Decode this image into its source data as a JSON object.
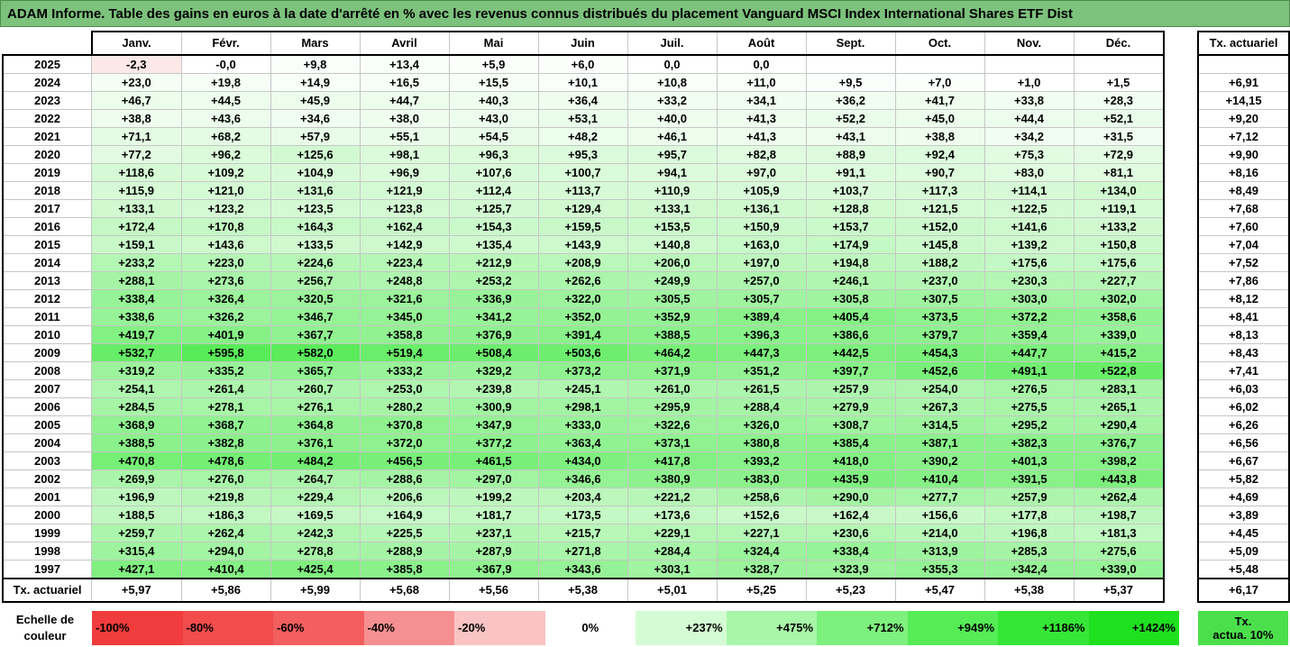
{
  "title": "ADAM Informe. Table des gains en euros à la date d'arrêté en % avec les revenus connus distribués du placement Vanguard MSCI Index International Shares ETF Dist",
  "months": [
    "Janv.",
    "Févr.",
    "Mars",
    "Avril",
    "Mai",
    "Juin",
    "Juil.",
    "Août",
    "Sept.",
    "Oct.",
    "Nov.",
    "Déc."
  ],
  "tx_header": "Tx. actuariel",
  "rows": [
    {
      "year": "2025",
      "vals": [
        "-2,3",
        "-0,0",
        "+9,8",
        "+13,4",
        "+5,9",
        "+6,0",
        "0,0",
        "0,0",
        "",
        "",
        "",
        ""
      ],
      "tx": ""
    },
    {
      "year": "2024",
      "vals": [
        "+23,0",
        "+19,8",
        "+14,9",
        "+16,5",
        "+15,5",
        "+10,1",
        "+10,8",
        "+11,0",
        "+9,5",
        "+7,0",
        "+1,0",
        "+1,5"
      ],
      "tx": "+6,91"
    },
    {
      "year": "2023",
      "vals": [
        "+46,7",
        "+44,5",
        "+45,9",
        "+44,7",
        "+40,3",
        "+36,4",
        "+33,2",
        "+34,1",
        "+36,2",
        "+41,7",
        "+33,8",
        "+28,3"
      ],
      "tx": "+14,15"
    },
    {
      "year": "2022",
      "vals": [
        "+38,8",
        "+43,6",
        "+34,6",
        "+38,0",
        "+43,0",
        "+53,1",
        "+40,0",
        "+41,3",
        "+52,2",
        "+45,0",
        "+44,4",
        "+52,1"
      ],
      "tx": "+9,20"
    },
    {
      "year": "2021",
      "vals": [
        "+71,1",
        "+68,2",
        "+57,9",
        "+55,1",
        "+54,5",
        "+48,2",
        "+46,1",
        "+41,3",
        "+43,1",
        "+38,8",
        "+34,2",
        "+31,5"
      ],
      "tx": "+7,12"
    },
    {
      "year": "2020",
      "vals": [
        "+77,2",
        "+96,2",
        "+125,6",
        "+98,1",
        "+96,3",
        "+95,3",
        "+95,7",
        "+82,8",
        "+88,9",
        "+92,4",
        "+75,3",
        "+72,9"
      ],
      "tx": "+9,90"
    },
    {
      "year": "2019",
      "vals": [
        "+118,6",
        "+109,2",
        "+104,9",
        "+96,9",
        "+107,6",
        "+100,7",
        "+94,1",
        "+97,0",
        "+91,1",
        "+90,7",
        "+83,0",
        "+81,1"
      ],
      "tx": "+8,16"
    },
    {
      "year": "2018",
      "vals": [
        "+115,9",
        "+121,0",
        "+131,6",
        "+121,9",
        "+112,4",
        "+113,7",
        "+110,9",
        "+105,9",
        "+103,7",
        "+117,3",
        "+114,1",
        "+134,0"
      ],
      "tx": "+8,49"
    },
    {
      "year": "2017",
      "vals": [
        "+133,1",
        "+123,2",
        "+123,5",
        "+123,8",
        "+125,7",
        "+129,4",
        "+133,1",
        "+136,1",
        "+128,8",
        "+121,5",
        "+122,5",
        "+119,1"
      ],
      "tx": "+7,68"
    },
    {
      "year": "2016",
      "vals": [
        "+172,4",
        "+170,8",
        "+164,3",
        "+162,4",
        "+154,3",
        "+159,5",
        "+153,5",
        "+150,9",
        "+153,7",
        "+152,0",
        "+141,6",
        "+133,2"
      ],
      "tx": "+7,60"
    },
    {
      "year": "2015",
      "vals": [
        "+159,1",
        "+143,6",
        "+133,5",
        "+142,9",
        "+135,4",
        "+143,9",
        "+140,8",
        "+163,0",
        "+174,9",
        "+145,8",
        "+139,2",
        "+150,8"
      ],
      "tx": "+7,04"
    },
    {
      "year": "2014",
      "vals": [
        "+233,2",
        "+223,0",
        "+224,6",
        "+223,4",
        "+212,9",
        "+208,9",
        "+206,0",
        "+197,0",
        "+194,8",
        "+188,2",
        "+175,6",
        "+175,6"
      ],
      "tx": "+7,52"
    },
    {
      "year": "2013",
      "vals": [
        "+288,1",
        "+273,6",
        "+256,7",
        "+248,8",
        "+253,2",
        "+262,6",
        "+249,9",
        "+257,0",
        "+246,1",
        "+237,0",
        "+230,3",
        "+227,7"
      ],
      "tx": "+7,86"
    },
    {
      "year": "2012",
      "vals": [
        "+338,4",
        "+326,4",
        "+320,5",
        "+321,6",
        "+336,9",
        "+322,0",
        "+305,5",
        "+305,7",
        "+305,8",
        "+307,5",
        "+303,0",
        "+302,0"
      ],
      "tx": "+8,12"
    },
    {
      "year": "2011",
      "vals": [
        "+338,6",
        "+326,2",
        "+346,7",
        "+345,0",
        "+341,2",
        "+352,0",
        "+352,9",
        "+389,4",
        "+405,4",
        "+373,5",
        "+372,2",
        "+358,6"
      ],
      "tx": "+8,41"
    },
    {
      "year": "2010",
      "vals": [
        "+419,7",
        "+401,9",
        "+367,7",
        "+358,8",
        "+376,9",
        "+391,4",
        "+388,5",
        "+396,3",
        "+386,6",
        "+379,7",
        "+359,4",
        "+339,0"
      ],
      "tx": "+8,13"
    },
    {
      "year": "2009",
      "vals": [
        "+532,7",
        "+595,8",
        "+582,0",
        "+519,4",
        "+508,4",
        "+503,6",
        "+464,2",
        "+447,3",
        "+442,5",
        "+454,3",
        "+447,7",
        "+415,2"
      ],
      "tx": "+8,43"
    },
    {
      "year": "2008",
      "vals": [
        "+319,2",
        "+335,2",
        "+365,7",
        "+333,2",
        "+329,2",
        "+373,2",
        "+371,9",
        "+351,2",
        "+397,7",
        "+452,6",
        "+491,1",
        "+522,8"
      ],
      "tx": "+7,41"
    },
    {
      "year": "2007",
      "vals": [
        "+254,1",
        "+261,4",
        "+260,7",
        "+253,0",
        "+239,8",
        "+245,1",
        "+261,0",
        "+261,5",
        "+257,9",
        "+254,0",
        "+276,5",
        "+283,1"
      ],
      "tx": "+6,03"
    },
    {
      "year": "2006",
      "vals": [
        "+284,5",
        "+278,1",
        "+276,1",
        "+280,2",
        "+300,9",
        "+298,1",
        "+295,9",
        "+288,4",
        "+279,9",
        "+267,3",
        "+275,5",
        "+265,1"
      ],
      "tx": "+6,02"
    },
    {
      "year": "2005",
      "vals": [
        "+368,9",
        "+368,7",
        "+364,8",
        "+370,8",
        "+347,9",
        "+333,0",
        "+322,6",
        "+326,0",
        "+308,7",
        "+314,5",
        "+295,2",
        "+290,4"
      ],
      "tx": "+6,26"
    },
    {
      "year": "2004",
      "vals": [
        "+388,5",
        "+382,8",
        "+376,1",
        "+372,0",
        "+377,2",
        "+363,4",
        "+373,1",
        "+380,8",
        "+385,4",
        "+387,1",
        "+382,3",
        "+376,7"
      ],
      "tx": "+6,56"
    },
    {
      "year": "2003",
      "vals": [
        "+470,8",
        "+478,6",
        "+484,2",
        "+456,5",
        "+461,5",
        "+434,0",
        "+417,8",
        "+393,2",
        "+418,0",
        "+390,2",
        "+401,3",
        "+398,2"
      ],
      "tx": "+6,67"
    },
    {
      "year": "2002",
      "vals": [
        "+269,9",
        "+276,0",
        "+264,7",
        "+288,6",
        "+297,0",
        "+346,6",
        "+380,9",
        "+383,0",
        "+435,9",
        "+410,4",
        "+391,5",
        "+443,8"
      ],
      "tx": "+5,82"
    },
    {
      "year": "2001",
      "vals": [
        "+196,9",
        "+219,8",
        "+229,4",
        "+206,6",
        "+199,2",
        "+203,4",
        "+221,2",
        "+258,6",
        "+290,0",
        "+277,7",
        "+257,9",
        "+262,4"
      ],
      "tx": "+4,69"
    },
    {
      "year": "2000",
      "vals": [
        "+188,5",
        "+186,3",
        "+169,5",
        "+164,9",
        "+181,7",
        "+173,5",
        "+173,6",
        "+152,6",
        "+162,4",
        "+156,6",
        "+177,8",
        "+198,7"
      ],
      "tx": "+3,89"
    },
    {
      "year": "1999",
      "vals": [
        "+259,7",
        "+262,4",
        "+242,3",
        "+225,5",
        "+237,1",
        "+215,7",
        "+229,1",
        "+227,1",
        "+230,6",
        "+214,0",
        "+196,8",
        "+181,3"
      ],
      "tx": "+4,45"
    },
    {
      "year": "1998",
      "vals": [
        "+315,4",
        "+294,0",
        "+278,8",
        "+288,9",
        "+287,9",
        "+271,8",
        "+284,4",
        "+324,4",
        "+338,4",
        "+313,9",
        "+285,3",
        "+275,6"
      ],
      "tx": "+5,09"
    },
    {
      "year": "1997",
      "vals": [
        "+427,1",
        "+410,4",
        "+425,4",
        "+385,8",
        "+367,9",
        "+343,6",
        "+303,1",
        "+328,7",
        "+323,9",
        "+355,3",
        "+342,4",
        "+339,0"
      ],
      "tx": "+5,48"
    }
  ],
  "footer": {
    "label": "Tx. actuariel",
    "vals": [
      "+5,97",
      "+5,86",
      "+5,99",
      "+5,68",
      "+5,56",
      "+5,38",
      "+5,01",
      "+5,25",
      "+5,23",
      "+5,47",
      "+5,38",
      "+5,37"
    ],
    "tx": "+6,17"
  },
  "scale": {
    "label_line1": "Echelle de",
    "label_line2": "couleur",
    "steps": [
      {
        "label": "-100%",
        "color": "#f03c3c",
        "align": "left"
      },
      {
        "label": "-80%",
        "color": "#f24c4c",
        "align": "left"
      },
      {
        "label": "-60%",
        "color": "#f35e5e",
        "align": "left"
      },
      {
        "label": "-40%",
        "color": "#f69090",
        "align": "left"
      },
      {
        "label": "-20%",
        "color": "#fac4c4",
        "align": "left"
      },
      {
        "label": "0%",
        "color": "#ffffff",
        "align": "center"
      },
      {
        "label": "+237%",
        "color": "#d4fcd4",
        "align": "right"
      },
      {
        "label": "+475%",
        "color": "#a8f6a8",
        "align": "right"
      },
      {
        "label": "+712%",
        "color": "#7ef07e",
        "align": "right"
      },
      {
        "label": "+949%",
        "color": "#55ec55",
        "align": "right"
      },
      {
        "label": "+1186%",
        "color": "#36e636",
        "align": "right"
      },
      {
        "label": "+1424%",
        "color": "#1ee01e",
        "align": "right"
      }
    ],
    "tx_line1": "Tx.",
    "tx_line2": "actua. 10%"
  },
  "colors": {
    "title_bg": "#7cc17c",
    "positive_max": "#1ee01e",
    "negative_max": "#f03c3c"
  }
}
